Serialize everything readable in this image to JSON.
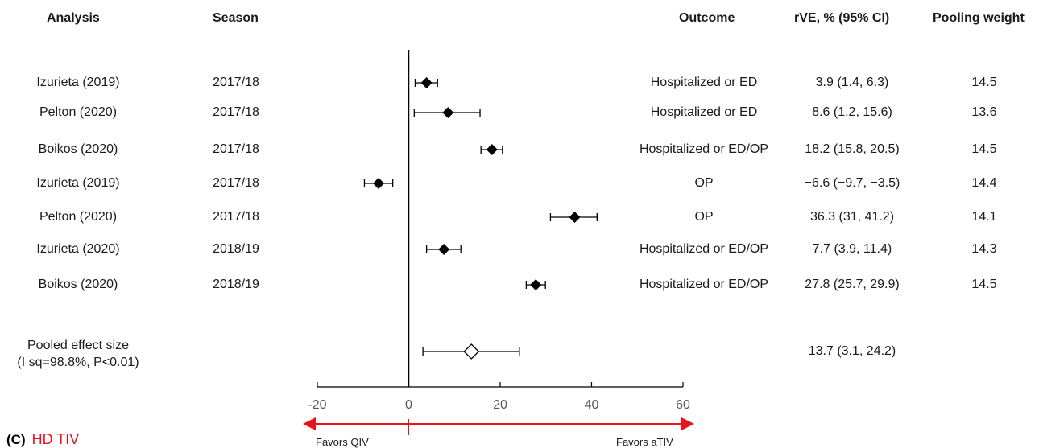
{
  "headers": {
    "analysis": "Analysis",
    "season": "Season",
    "outcome": "Outcome",
    "rve": "rVE, % (95% CI)",
    "weight": "Pooling weight"
  },
  "pooled": {
    "label_line1": "Pooled effect size",
    "label_line2": "(I sq=98.8%, P<0.01)",
    "rve": "13.7 (3.1, 24.2)"
  },
  "favors": {
    "left": "Favors QIV",
    "right": "Favors aTIV"
  },
  "panel": {
    "label": "(C)",
    "name": "HD TIV"
  },
  "colors": {
    "marker": "#000000",
    "arrow": "#e8141c",
    "axis": "#000000"
  },
  "chart_data": {
    "type": "forest",
    "xlim": [
      -20,
      60
    ],
    "xticks": [
      -20,
      0,
      20,
      40,
      60
    ],
    "rows": [
      {
        "analysis": "Izurieta (2019)",
        "season": "2017/18",
        "outcome": "Hospitalized or ED",
        "rve_text": "3.9 (1.4, 6.3)",
        "weight": "14.5",
        "est": 3.9,
        "lo": 1.4,
        "hi": 6.3
      },
      {
        "analysis": "Pelton (2020)",
        "season": "2017/18",
        "outcome": "Hospitalized or ED",
        "rve_text": "8.6 (1.2, 15.6)",
        "weight": "13.6",
        "est": 8.6,
        "lo": 1.2,
        "hi": 15.6
      },
      {
        "analysis": "Boikos (2020)",
        "season": "2017/18",
        "outcome": "Hospitalized or ED/OP",
        "rve_text": "18.2 (15.8, 20.5)",
        "weight": "14.5",
        "est": 18.2,
        "lo": 15.8,
        "hi": 20.5
      },
      {
        "analysis": "Izurieta (2019)",
        "season": "2017/18",
        "outcome": "OP",
        "rve_text": "−6.6 (−9.7, −3.5)",
        "weight": "14.4",
        "est": -6.6,
        "lo": -9.7,
        "hi": -3.5
      },
      {
        "analysis": "Pelton (2020)",
        "season": "2017/18",
        "outcome": "OP",
        "rve_text": "36.3 (31, 41.2)",
        "weight": "14.1",
        "est": 36.3,
        "lo": 31,
        "hi": 41.2
      },
      {
        "analysis": "Izurieta (2020)",
        "season": "2018/19",
        "outcome": "Hospitalized or ED/OP",
        "rve_text": "7.7 (3.9, 11.4)",
        "weight": "14.3",
        "est": 7.7,
        "lo": 3.9,
        "hi": 11.4
      },
      {
        "analysis": "Boikos (2020)",
        "season": "2018/19",
        "outcome": "Hospitalized or ED/OP",
        "rve_text": "27.8 (25.7, 29.9)",
        "weight": "14.5",
        "est": 27.8,
        "lo": 25.7,
        "hi": 29.9
      }
    ],
    "pooled": {
      "est": 13.7,
      "lo": 3.1,
      "hi": 24.2
    }
  }
}
